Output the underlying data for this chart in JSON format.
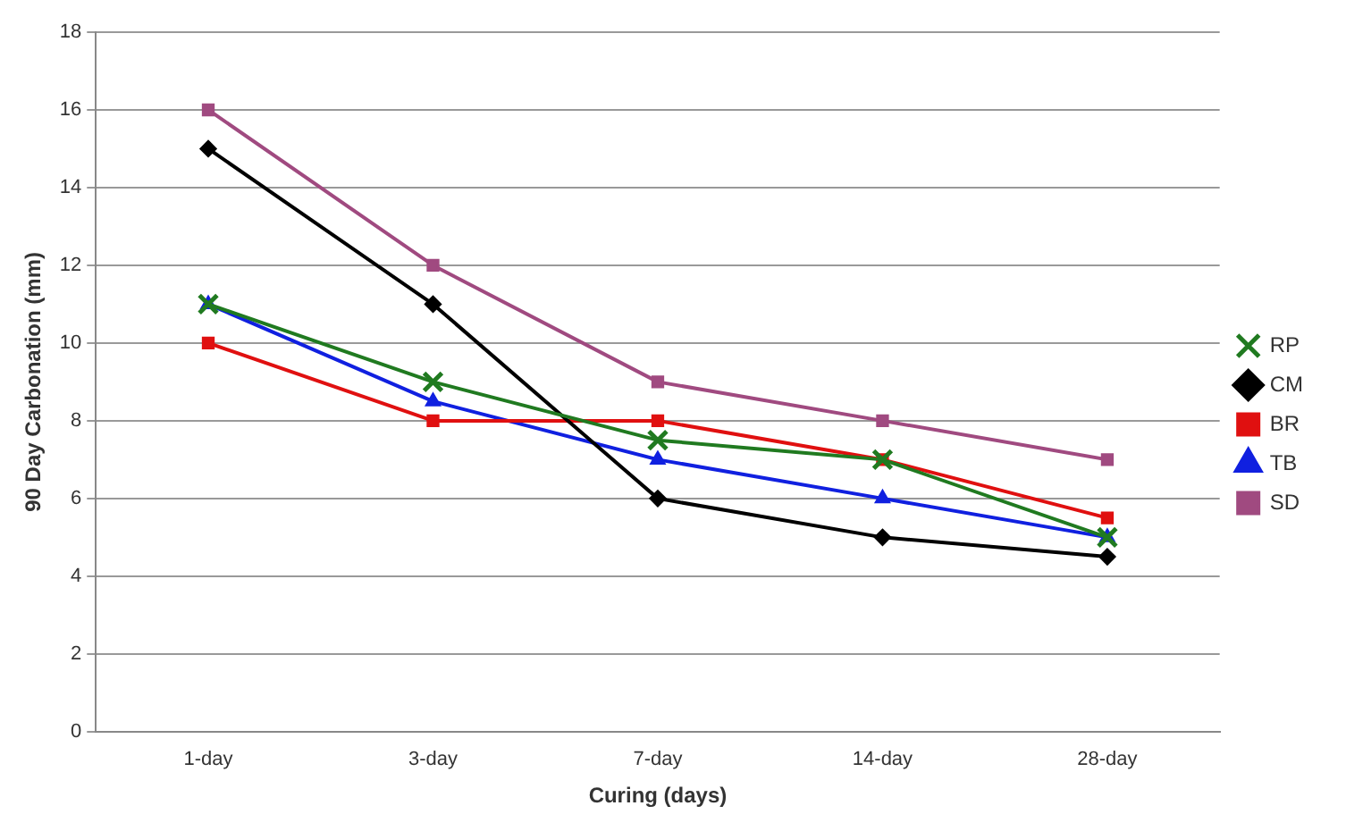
{
  "chart_data": {
    "type": "line",
    "xlabel": "Curing (days)",
    "ylabel": "90 Day Carbonation (mm)",
    "categories": [
      "1-day",
      "3-day",
      "7-day",
      "14-day",
      "28-day"
    ],
    "series": [
      {
        "name": "CM",
        "color": "#000000",
        "marker": "diamond",
        "values": [
          15,
          11,
          6,
          5,
          4.5
        ]
      },
      {
        "name": "BR",
        "color": "#e01010",
        "marker": "square",
        "values": [
          10,
          8,
          8,
          7,
          5.5
        ]
      },
      {
        "name": "TB",
        "color": "#1020e0",
        "marker": "triangle",
        "values": [
          11,
          8.5,
          7,
          6,
          5
        ]
      },
      {
        "name": "RP",
        "color": "#207a20",
        "marker": "cross",
        "values": [
          11,
          9,
          7.5,
          7,
          5
        ]
      },
      {
        "name": "SD",
        "color": "#a04a80",
        "marker": "square",
        "values": [
          16,
          12,
          9,
          8,
          7
        ]
      }
    ],
    "ylim": [
      0,
      18
    ],
    "yticks": [
      0,
      2,
      4,
      6,
      8,
      10,
      12,
      14,
      16,
      18
    ],
    "grid": "y",
    "legend": "right",
    "line_style": "solid"
  }
}
